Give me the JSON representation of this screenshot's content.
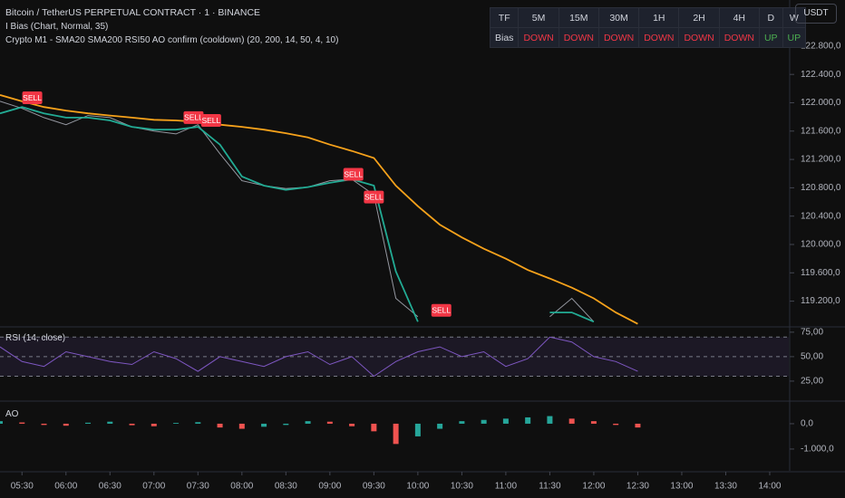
{
  "chart_data": [
    {
      "type": "line",
      "title": "Bitcoin / TetherUS PERPETUAL CONTRACT · 1 · BINANCE",
      "subtitles": [
        "I Bias (Chart, Normal, 35)",
        "Crypto M1 - SMA20 SMA200 RSI50 AO confirm (cooldown) (20, 200, 14, 50, 4, 10)"
      ],
      "x": [
        315,
        330,
        345,
        360,
        375,
        390,
        405,
        420,
        435,
        450,
        465,
        480,
        495,
        510,
        525,
        540,
        555,
        570,
        585,
        600,
        615,
        630,
        645,
        660,
        675,
        690,
        705,
        720,
        735,
        750
      ],
      "xlim": [
        315,
        853
      ],
      "ylim": [
        118850,
        123450
      ],
      "yticks": [
        {
          "value": 119200,
          "label": "119.200,0"
        },
        {
          "value": 119600,
          "label": "119.600,0"
        },
        {
          "value": 120000,
          "label": "120.000,0"
        },
        {
          "value": 120400,
          "label": "120.400,0"
        },
        {
          "value": 120800,
          "label": "120.800,0"
        },
        {
          "value": 121200,
          "label": "121.200,0"
        },
        {
          "value": 121600,
          "label": "121.600,0"
        },
        {
          "value": 122000,
          "label": "122.000,0"
        },
        {
          "value": 122400,
          "label": "122.400,0"
        },
        {
          "value": 122800,
          "label": "122.800,0"
        }
      ],
      "series": [
        {
          "color": "#9598a1",
          "values": [
            122020,
            121920,
            121790,
            121690,
            121820,
            121790,
            121660,
            121600,
            121560,
            121690,
            121280,
            120900,
            120830,
            120790,
            120810,
            120900,
            120920,
            120700,
            119240,
            118980,
            null,
            null,
            null,
            null,
            null,
            118980,
            119240,
            118910,
            null,
            null
          ]
        },
        {
          "color": "#22ab94",
          "values": [
            121850,
            121940,
            121850,
            121790,
            121790,
            121750,
            121660,
            121620,
            121620,
            121660,
            121410,
            120960,
            120830,
            120770,
            120810,
            120870,
            120920,
            120830,
            119620,
            118910,
            null,
            null,
            null,
            null,
            null,
            119040,
            119040,
            118910,
            null,
            null
          ]
        },
        {
          "color": "#f7a21b",
          "values": [
            122110,
            122020,
            121940,
            121890,
            121850,
            121820,
            121790,
            121760,
            121750,
            121730,
            121690,
            121660,
            121620,
            121570,
            121510,
            121410,
            121320,
            121220,
            120830,
            120540,
            120280,
            120100,
            119940,
            119800,
            119640,
            119520,
            119390,
            119240,
            119040,
            118880
          ]
        }
      ],
      "signals": [
        {
          "x": 337,
          "y": 122070,
          "label": "SELL"
        },
        {
          "x": 447,
          "y": 121790,
          "label": "SELL"
        },
        {
          "x": 459,
          "y": 121750,
          "label": "SELL"
        },
        {
          "x": 556,
          "y": 120990,
          "label": "SELL"
        },
        {
          "x": 570,
          "y": 120670,
          "label": "SELL"
        },
        {
          "x": 616,
          "y": 119070,
          "label": "SELL"
        }
      ],
      "signal_color": "#f23645"
    },
    {
      "type": "line",
      "title": "RSI (14, close)",
      "x": [
        315,
        330,
        345,
        360,
        375,
        390,
        405,
        420,
        435,
        450,
        465,
        480,
        495,
        510,
        525,
        540,
        555,
        570,
        585,
        600,
        615,
        630,
        645,
        660,
        675,
        690,
        705,
        720,
        735,
        750
      ],
      "xlim": [
        315,
        853
      ],
      "ylim": [
        5.5,
        79.5
      ],
      "yticks": [
        {
          "value": 25,
          "label": "25,00"
        },
        {
          "value": 50,
          "label": "50,00"
        },
        {
          "value": 75,
          "label": "75,00"
        }
      ],
      "levels": [
        70,
        50,
        30
      ],
      "band_color": "#7e57c2",
      "series": [
        {
          "color": "#7e57c2",
          "values": [
            60,
            45,
            40,
            55,
            50,
            45,
            42,
            55,
            48,
            35,
            50,
            45,
            40,
            50,
            55,
            42,
            50,
            30,
            45,
            55,
            60,
            50,
            55,
            40,
            48,
            70,
            65,
            50,
            45,
            35
          ]
        }
      ]
    },
    {
      "type": "bar",
      "title": "AO",
      "x": [
        315,
        330,
        345,
        360,
        375,
        390,
        405,
        420,
        435,
        450,
        465,
        480,
        495,
        510,
        525,
        540,
        555,
        570,
        585,
        600,
        615,
        630,
        645,
        660,
        675,
        690,
        705,
        720,
        735,
        750
      ],
      "xlim": [
        315,
        853
      ],
      "ylim": [
        -1860,
        820
      ],
      "yticks": [
        {
          "value": -1000,
          "label": "-1.000,0"
        },
        {
          "value": 0,
          "label": "0,0"
        }
      ],
      "xticks": [
        {
          "value": 330,
          "label": "05:30"
        },
        {
          "value": 360,
          "label": "06:00"
        },
        {
          "value": 390,
          "label": "06:30"
        },
        {
          "value": 420,
          "label": "07:00"
        },
        {
          "value": 450,
          "label": "07:30"
        },
        {
          "value": 480,
          "label": "08:00"
        },
        {
          "value": 510,
          "label": "08:30"
        },
        {
          "value": 540,
          "label": "09:00"
        },
        {
          "value": 570,
          "label": "09:30"
        },
        {
          "value": 600,
          "label": "10:00"
        },
        {
          "value": 630,
          "label": "10:30"
        },
        {
          "value": 660,
          "label": "11:00"
        },
        {
          "value": 690,
          "label": "11:30"
        },
        {
          "value": 720,
          "label": "12:00"
        },
        {
          "value": 750,
          "label": "12:30"
        },
        {
          "value": 780,
          "label": "13:00"
        },
        {
          "value": 810,
          "label": "13:30"
        },
        {
          "value": 840,
          "label": "14:00"
        }
      ],
      "up_color": "#26a69a",
      "down_color": "#ef5350",
      "values": [
        100,
        50,
        -50,
        -80,
        40,
        80,
        -60,
        -100,
        30,
        60,
        -150,
        -200,
        -120,
        -50,
        100,
        80,
        -100,
        -300,
        -800,
        -500,
        -200,
        100,
        150,
        200,
        250,
        300,
        200,
        100,
        -50,
        -150
      ]
    }
  ],
  "currency_button": "USDT",
  "bias_table": {
    "header": [
      "TF",
      "5M",
      "15M",
      "30M",
      "1H",
      "2H",
      "4H",
      "D",
      "W"
    ],
    "row": [
      "Bias",
      "DOWN",
      "DOWN",
      "DOWN",
      "DOWN",
      "DOWN",
      "DOWN",
      "UP",
      "UP"
    ]
  }
}
